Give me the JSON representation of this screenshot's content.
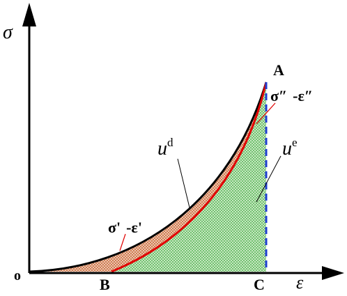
{
  "axes": {
    "y_label": "σ",
    "x_label": "ε",
    "origin": "o"
  },
  "points": {
    "A": "A",
    "B": "B",
    "C": "C"
  },
  "regions": {
    "dissipated": {
      "base": "u",
      "sup": "d"
    },
    "elastic": {
      "base": "u",
      "sup": "e"
    }
  },
  "curves": {
    "unloading": {
      "sigma": "σ″",
      "eps": "-ε″"
    },
    "loading": {
      "sigma": "σ'",
      "eps": "-ε'"
    }
  }
}
